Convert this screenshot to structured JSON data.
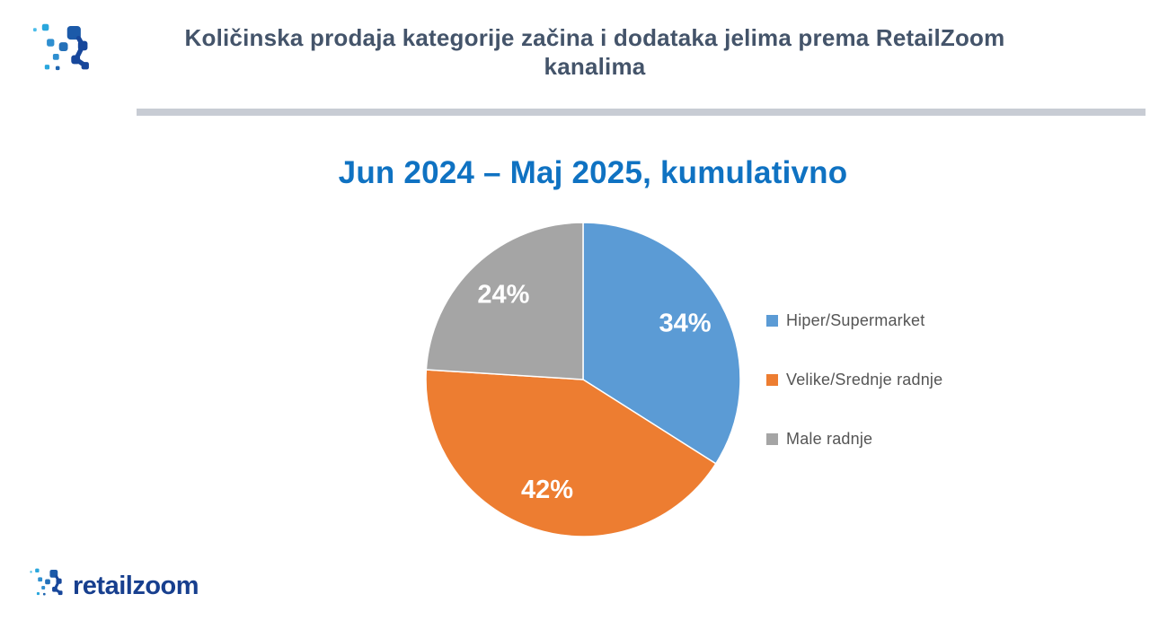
{
  "header": {
    "title_line1": "Količinska prodaja kategorije začina i dodataka jelima prema RetailZoom",
    "title_line2": "kanalima",
    "logo_icon": "retailzoom-mark-icon"
  },
  "chart_data": {
    "type": "pie",
    "title": "Jun 2024 – Maj 2025, kumulativno",
    "categories": [
      "Hiper/Supermarket",
      "Velike/Srednje radnje",
      "Male radnje"
    ],
    "values": [
      34,
      42,
      24
    ],
    "labels": [
      "34%",
      "42%",
      "24%"
    ],
    "colors": [
      "#5B9BD5",
      "#ED7D31",
      "#A5A5A5"
    ],
    "label_color": "#FFFFFF",
    "legend_position": "right",
    "start_angle_deg": 0,
    "direction": "clockwise",
    "slice_border_color": "#FFFFFF"
  },
  "footer": {
    "brand": "retailzoom",
    "logo_icon": "retailzoom-mark-icon"
  },
  "colors": {
    "title_text": "#44546A",
    "chart_title_text": "#0F72C2",
    "divider": "#C8CCD4",
    "legend_text": "#555555",
    "brand_text": "#173F8E"
  }
}
